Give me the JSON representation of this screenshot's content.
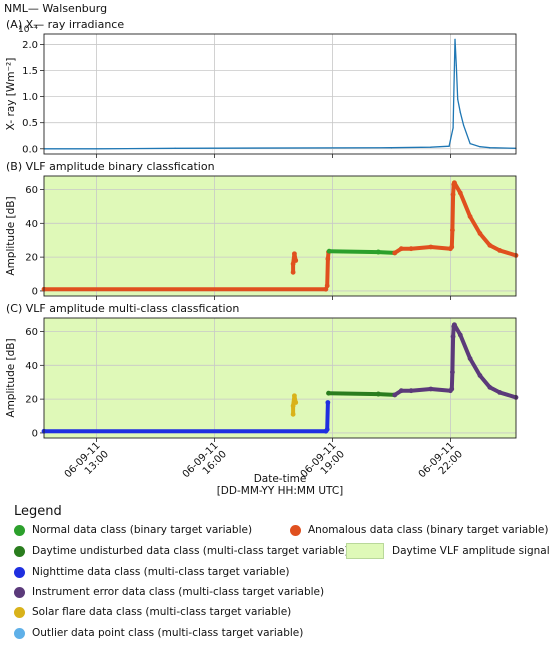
{
  "header": {
    "station": "NML— Walsenburg"
  },
  "colors": {
    "daytime_bg": "#dff9b8",
    "xray_line": "#1f77b4",
    "binary_normal": "#2ca02c",
    "binary_anomalous": "#e0501f",
    "mc_daytime": "#2a7d1e",
    "mc_night": "#1f2fe0",
    "mc_instrument": "#5b3a7a",
    "mc_flare": "#d9b21a",
    "mc_outlier": "#5fb0e8"
  },
  "chart_data": [
    {
      "type": "line",
      "panel": "A",
      "title": "(A) X— ray irradiance",
      "ylabel": "X- ray [Wm⁻²]",
      "y_multiplier": "10⁻⁴",
      "ylim": [
        -0.1,
        2.2
      ],
      "yticks": [
        "0.0",
        "0.5",
        "1.0",
        "1.5",
        "2.0"
      ],
      "ytick_values": [
        0.0,
        0.5,
        1.0,
        1.5,
        2.0
      ],
      "x": [
        "11:40",
        "13:00",
        "15:00",
        "20:30",
        "21:30",
        "21:58",
        "22:04",
        "22:07",
        "22:09",
        "22:11",
        "22:15",
        "22:20",
        "22:30",
        "22:45",
        "23:00",
        "23:40"
      ],
      "values": [
        0.0,
        0.0,
        0.01,
        0.02,
        0.03,
        0.05,
        0.4,
        2.1,
        1.6,
        0.95,
        0.7,
        0.45,
        0.1,
        0.04,
        0.02,
        0.01
      ]
    },
    {
      "type": "scatter",
      "panel": "B",
      "title": "(B) VLF amplitude binary classfication",
      "ylabel": "Amplitude [dB]",
      "ylim": [
        -3,
        68
      ],
      "yticks": [
        "0",
        "20",
        "40",
        "60"
      ],
      "ytick_values": [
        0,
        20,
        40,
        60
      ],
      "segments": [
        {
          "cls": "binary_anomalous",
          "x": [
            "11:40",
            "18:50"
          ],
          "y": [
            1,
            1
          ]
        },
        {
          "cls": "binary_anomalous",
          "x": [
            "18:00",
            "18:00",
            "18:02",
            "18:04"
          ],
          "y": [
            11,
            16,
            22,
            18
          ]
        },
        {
          "cls": "binary_anomalous",
          "x": [
            "18:52",
            "18:53",
            "18:54"
          ],
          "y": [
            3,
            19,
            23
          ]
        },
        {
          "cls": "binary_normal",
          "x": [
            "18:55",
            "20:10"
          ],
          "y": [
            23.5,
            23
          ]
        },
        {
          "cls": "binary_normal",
          "x": [
            "20:10",
            "20:35"
          ],
          "y": [
            23,
            22.5
          ]
        },
        {
          "cls": "binary_anomalous",
          "x": [
            "20:35",
            "20:45",
            "21:00",
            "21:30",
            "22:00"
          ],
          "y": [
            22.5,
            25,
            25,
            26,
            25
          ]
        },
        {
          "cls": "binary_anomalous",
          "x": [
            "22:02",
            "22:03",
            "22:04",
            "22:05",
            "22:06"
          ],
          "y": [
            26,
            36,
            57,
            63,
            64
          ]
        },
        {
          "cls": "binary_anomalous",
          "x": [
            "22:06",
            "22:15",
            "22:30",
            "22:45",
            "23:00",
            "23:15",
            "23:40"
          ],
          "y": [
            64,
            58,
            44,
            34,
            27,
            24,
            21
          ]
        }
      ]
    },
    {
      "type": "scatter",
      "panel": "C",
      "title": "(C) VLF amplitude multi-class classfication",
      "ylabel": "Amplitude [dB]",
      "ylim": [
        -3,
        68
      ],
      "yticks": [
        "0",
        "20",
        "40",
        "60"
      ],
      "ytick_values": [
        0,
        20,
        40,
        60
      ],
      "x_ticks": [
        "06-09-11\n13:00",
        "06-09-11\n16:00",
        "06-09-11\n19:00",
        "06-09-11\n22:00"
      ],
      "xlabel": "Date-time",
      "xlabel2": "[DD-MM-YY HH:MM UTC]",
      "segments": [
        {
          "cls": "mc_night",
          "x": [
            "11:40",
            "18:50"
          ],
          "y": [
            1,
            1
          ]
        },
        {
          "cls": "mc_flare",
          "x": [
            "18:00",
            "18:00",
            "18:02",
            "18:04"
          ],
          "y": [
            11,
            16,
            22,
            18
          ]
        },
        {
          "cls": "mc_night",
          "x": [
            "18:52",
            "18:53"
          ],
          "y": [
            2,
            18
          ]
        },
        {
          "cls": "mc_daytime",
          "x": [
            "18:54",
            "20:10"
          ],
          "y": [
            23.5,
            23
          ]
        },
        {
          "cls": "mc_daytime",
          "x": [
            "20:10",
            "20:35"
          ],
          "y": [
            23,
            22.5
          ]
        },
        {
          "cls": "mc_instrument",
          "x": [
            "20:35",
            "20:45",
            "21:00",
            "21:30",
            "22:00"
          ],
          "y": [
            22.5,
            25,
            25,
            26,
            25
          ]
        },
        {
          "cls": "mc_instrument",
          "x": [
            "22:02",
            "22:03",
            "22:04",
            "22:05",
            "22:06"
          ],
          "y": [
            26,
            36,
            57,
            63,
            64
          ]
        },
        {
          "cls": "mc_instrument",
          "x": [
            "22:06",
            "22:15",
            "22:30",
            "22:45",
            "23:00",
            "23:15",
            "23:40"
          ],
          "y": [
            64,
            58,
            44,
            34,
            27,
            24,
            21
          ]
        }
      ]
    }
  ],
  "legend": {
    "title": "Legend",
    "items": [
      {
        "label": "Normal data class (binary target variable)",
        "color": "#2ca02c"
      },
      {
        "label": "Anomalous data class (binary target variable)",
        "color": "#e0501f"
      },
      {
        "label": "Daytime undisturbed data class (multi-class target variable)",
        "color": "#2a7d1e"
      },
      {
        "label": "Daytime VLF amplitude signal",
        "color": "#dff9b8"
      },
      {
        "label": "Nighttime data class (multi-class target variable)",
        "color": "#1f2fe0"
      },
      {
        "label": "Instrument error data class (multi-class target variable)",
        "color": "#5b3a7a"
      },
      {
        "label": "Solar flare data class (multi-class target variable)",
        "color": "#d9b21a"
      },
      {
        "label": "Outlier data point class (multi-class target variable)",
        "color": "#5fb0e8"
      }
    ]
  }
}
